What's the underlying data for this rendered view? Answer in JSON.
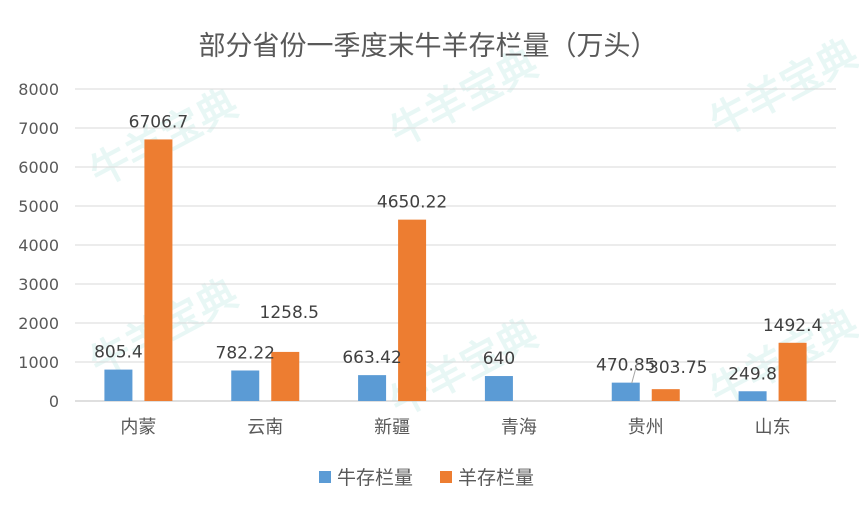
{
  "chart_data": {
    "type": "bar",
    "title": "部分省份一季度末牛羊存栏量（万头）",
    "categories": [
      "内蒙",
      "云南",
      "新疆",
      "青海",
      "贵州",
      "山东"
    ],
    "series": [
      {
        "name": "牛存栏量",
        "values": [
          805.4,
          782.22,
          663.42,
          640,
          470.85,
          249.8
        ],
        "labels": [
          "805.4",
          "782.22",
          "663.42",
          "640",
          "470.85",
          "249.8"
        ],
        "color": "#5b9bd5"
      },
      {
        "name": "羊存栏量",
        "values": [
          6706.7,
          1258.5,
          4650.22,
          null,
          303.75,
          1492.4
        ],
        "labels": [
          "6706.7",
          "1258.5",
          "4650.22",
          "",
          "303.75",
          "1492.4"
        ],
        "color": "#ed7d31"
      }
    ],
    "ylim": [
      0,
      8000
    ],
    "yticks": [
      0,
      1000,
      2000,
      3000,
      4000,
      5000,
      6000,
      7000,
      8000
    ],
    "grid": true,
    "legend": "bottom"
  },
  "watermark": "牛羊宝典"
}
